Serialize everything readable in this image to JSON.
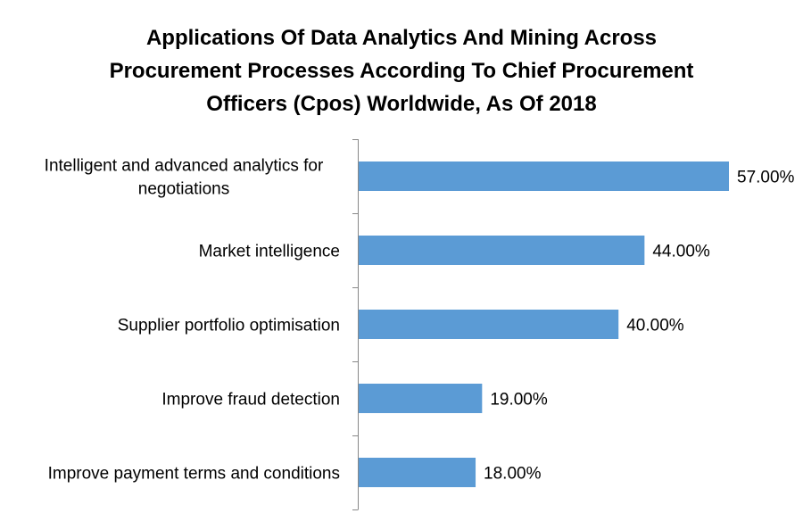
{
  "chart_data": {
    "type": "bar",
    "orientation": "horizontal",
    "title_lines": [
      "Applications Of Data Analytics And Mining Across",
      "Procurement Processes According To Chief Procurement",
      "Officers (Cpos) Worldwide, As Of 2018"
    ],
    "categories": [
      [
        "Intelligent and advanced analytics for",
        "negotiations"
      ],
      [
        "Market intelligence"
      ],
      [
        "Supplier portfolio optimisation"
      ],
      [
        "Improve fraud detection"
      ],
      [
        "Improve payment terms and conditions"
      ]
    ],
    "values": [
      57,
      44,
      40,
      19,
      18
    ],
    "value_labels": [
      "57.00%",
      "44.00%",
      "40.00%",
      "19.00%",
      "18.00%"
    ],
    "xlim": [
      0,
      57
    ],
    "grid": false,
    "legend": "none",
    "bar_color": "#5B9BD5",
    "axis_color": "#888888"
  }
}
